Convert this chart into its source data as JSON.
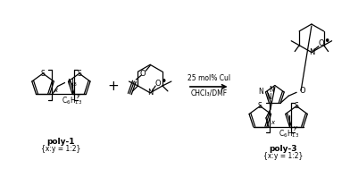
{
  "background_color": "#ffffff",
  "reaction_conditions_line1": "25 mol% CuI",
  "reaction_conditions_line2": "CHCl₃/DMF",
  "poly1_label": "poly-1",
  "poly1_ratio": "{x:y = 1:2}",
  "poly3_label": "poly-3",
  "poly3_ratio": "{x:y = 1:2}",
  "figsize": [
    3.92,
    1.89
  ],
  "dpi": 100
}
